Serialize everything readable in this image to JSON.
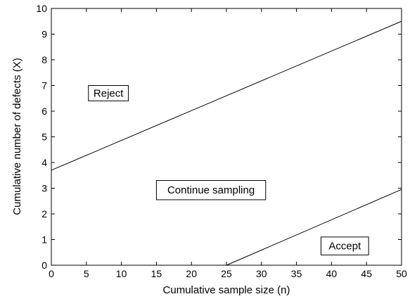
{
  "chart_data": {
    "type": "line",
    "xlabel": "Cumulative sample size (n)",
    "ylabel": "Cumulative number of defects (X)",
    "xlim": [
      0,
      50
    ],
    "ylim": [
      0,
      10
    ],
    "x_ticks": [
      "0",
      "5",
      "10",
      "15",
      "20",
      "25",
      "30",
      "35",
      "40",
      "45",
      "50"
    ],
    "y_ticks": [
      "0",
      "1",
      "2",
      "3",
      "4",
      "5",
      "6",
      "7",
      "8",
      "9",
      "10"
    ],
    "grid": false,
    "series": [
      {
        "x": [
          0,
          50
        ],
        "y": [
          3.7,
          9.5
        ],
        "color": "#000000"
      },
      {
        "x": [
          25,
          50
        ],
        "y": [
          0,
          2.95
        ],
        "color": "#000000"
      }
    ],
    "annotations": [
      {
        "text": "Reject",
        "x": 5.3,
        "y": 6.4,
        "x2": 11.0,
        "y2": 7.0
      },
      {
        "text": "Continue sampling",
        "x": 15.0,
        "y": 2.55,
        "x2": 30.6,
        "y2": 3.3
      },
      {
        "text": "Accept",
        "x": 38.5,
        "y": 0.4,
        "x2": 45.3,
        "y2": 1.1
      }
    ]
  }
}
